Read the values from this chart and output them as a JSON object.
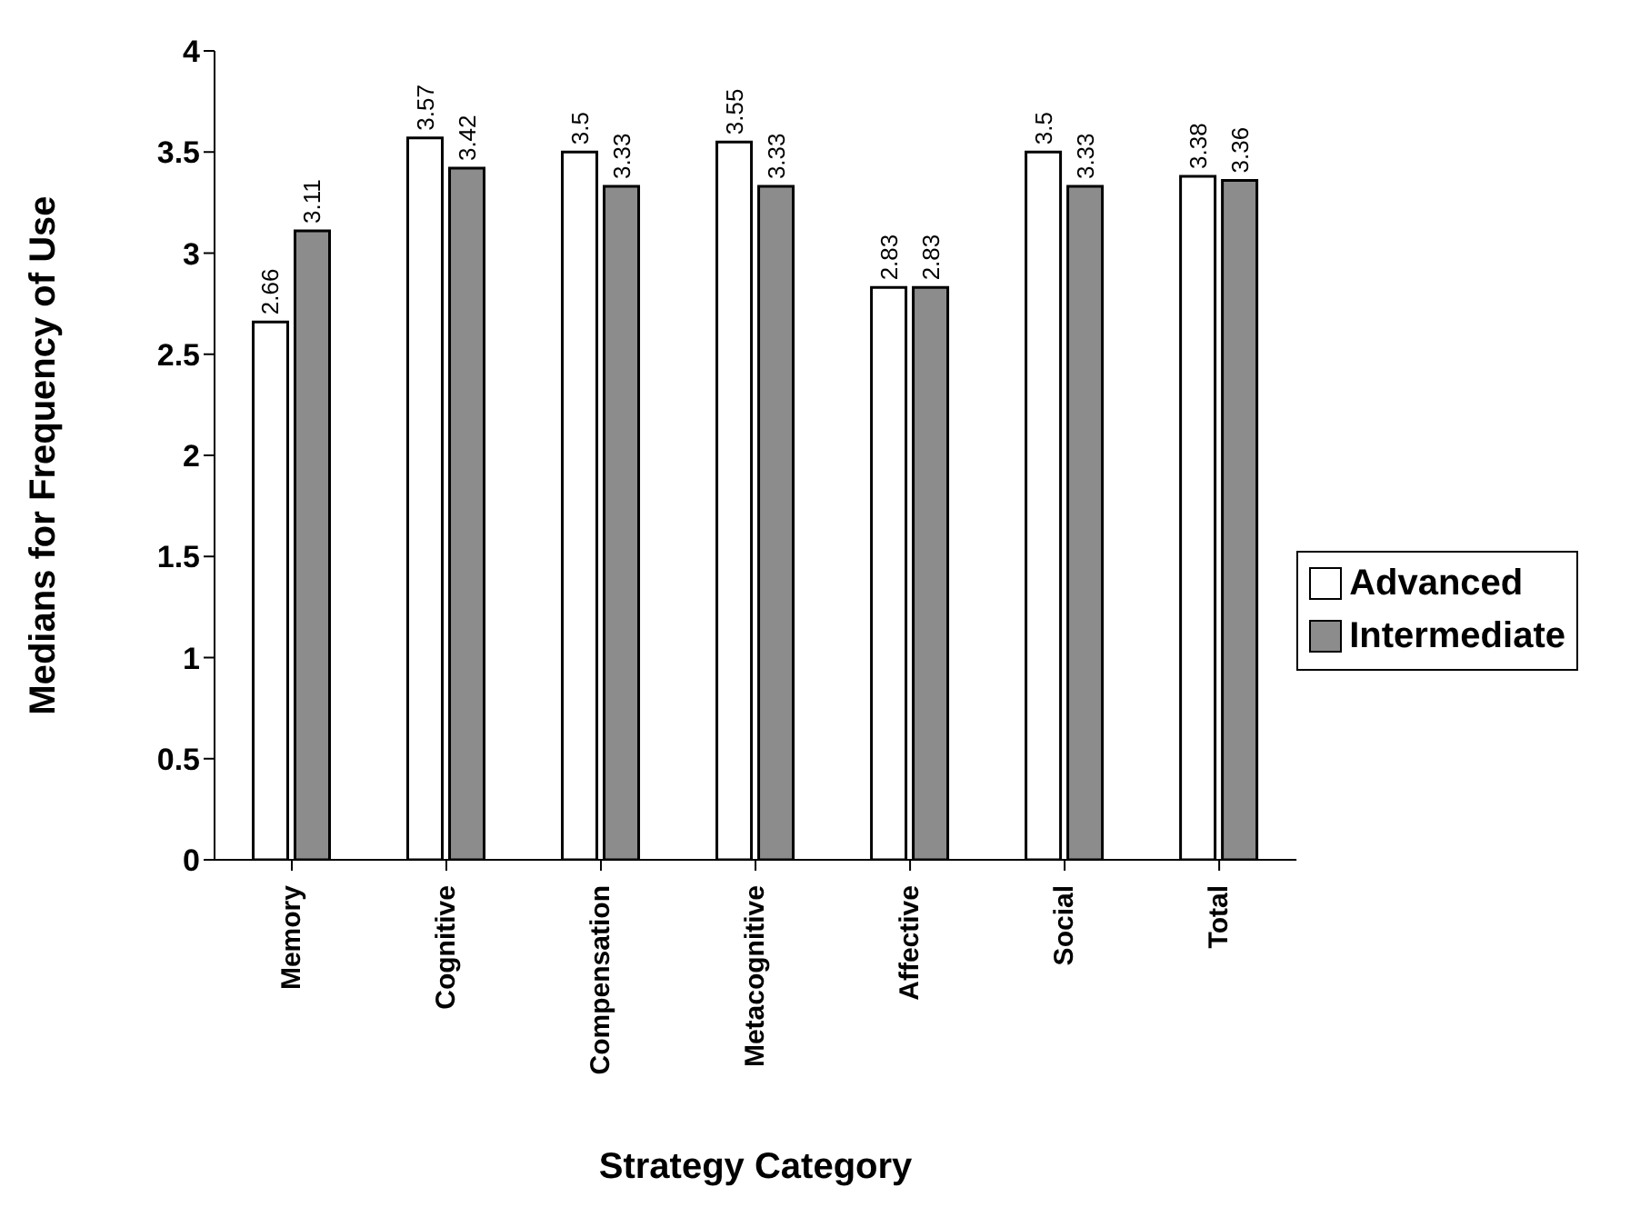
{
  "chart_data": {
    "type": "bar",
    "xlabel": "Strategy Category",
    "ylabel": "Medians for Frequency of Use",
    "categories": [
      "Memory",
      "Cognitive",
      "Compensation",
      "Metacognitive",
      "Affective",
      "Social",
      "Total"
    ],
    "series": [
      {
        "name": "Advanced",
        "color": "#ffffff",
        "values": [
          2.66,
          3.57,
          3.5,
          3.55,
          2.83,
          3.5,
          3.38
        ]
      },
      {
        "name": "Intermediate",
        "color": "#8c8c8c",
        "values": [
          3.11,
          3.42,
          3.33,
          3.33,
          2.83,
          3.33,
          3.36
        ]
      }
    ],
    "ylim": [
      0,
      4
    ],
    "yticks": [
      0,
      0.5,
      1,
      1.5,
      2,
      2.5,
      3,
      3.5,
      4
    ],
    "grid": false,
    "legend": "right",
    "data_labels": true
  }
}
